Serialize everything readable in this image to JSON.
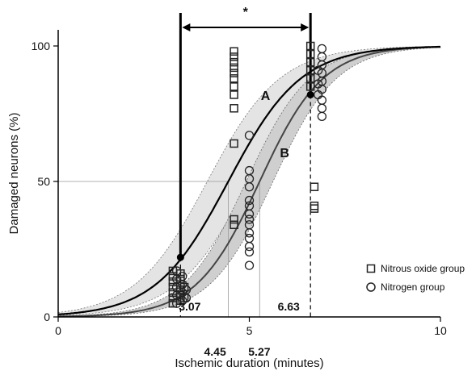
{
  "chart_data": {
    "type": "scatter",
    "xlabel": "Ischemic duration (minutes)",
    "ylabel": "Damaged neurons (%)",
    "xlim": [
      0,
      10
    ],
    "ylim": [
      0,
      100
    ],
    "x_ticks": [
      0,
      5,
      10
    ],
    "y_ticks": [
      0,
      50,
      100
    ],
    "grid": false,
    "legend_position": "bottom-right",
    "significance_marker": "*",
    "curve_labels": [
      "A",
      "B"
    ],
    "annotations": [
      {
        "text": "3.07",
        "x": 3.07
      },
      {
        "text": "6.63",
        "x": 6.63
      },
      {
        "text": "4.45",
        "x": 4.45
      },
      {
        "text": "5.27",
        "x": 5.27
      }
    ],
    "curves": [
      {
        "label": "A",
        "midpoint": 4.45,
        "slope": 1.05,
        "marked_points": [
          [
            3.2,
            22
          ],
          [
            6.6,
            82
          ]
        ]
      },
      {
        "label": "B",
        "midpoint": 5.27,
        "slope": 1.2
      }
    ],
    "series": [
      {
        "name": "Nitrous oxide group",
        "marker": "square",
        "points": [
          [
            3.0,
            5
          ],
          [
            3.0,
            7
          ],
          [
            3.0,
            9
          ],
          [
            3.0,
            11
          ],
          [
            3.0,
            13
          ],
          [
            3.0,
            15
          ],
          [
            3.0,
            17
          ],
          [
            3.2,
            6
          ],
          [
            3.2,
            8
          ],
          [
            3.2,
            10
          ],
          [
            3.2,
            12
          ],
          [
            3.2,
            14
          ],
          [
            3.2,
            16
          ],
          [
            3.3,
            7
          ],
          [
            3.3,
            11
          ],
          [
            4.6,
            64
          ],
          [
            4.6,
            77
          ],
          [
            4.6,
            82
          ],
          [
            4.6,
            85
          ],
          [
            4.6,
            88
          ],
          [
            4.6,
            90
          ],
          [
            4.6,
            92
          ],
          [
            4.6,
            94
          ],
          [
            4.6,
            96
          ],
          [
            4.6,
            98
          ],
          [
            4.6,
            34
          ],
          [
            4.6,
            36
          ],
          [
            6.6,
            85
          ],
          [
            6.6,
            88
          ],
          [
            6.6,
            91
          ],
          [
            6.6,
            94
          ],
          [
            6.6,
            97
          ],
          [
            6.6,
            100
          ],
          [
            6.7,
            48
          ],
          [
            6.7,
            40
          ],
          [
            6.7,
            41
          ]
        ]
      },
      {
        "name": "Nitrogen group",
        "marker": "circle",
        "points": [
          [
            3.1,
            5
          ],
          [
            3.1,
            8
          ],
          [
            3.1,
            11
          ],
          [
            3.1,
            14
          ],
          [
            3.1,
            17
          ],
          [
            3.25,
            6
          ],
          [
            3.25,
            9
          ],
          [
            3.25,
            12
          ],
          [
            3.25,
            15
          ],
          [
            3.35,
            7
          ],
          [
            3.35,
            10
          ],
          [
            5.0,
            67
          ],
          [
            5.0,
            54
          ],
          [
            5.0,
            51
          ],
          [
            5.0,
            48
          ],
          [
            5.0,
            43
          ],
          [
            5.0,
            41
          ],
          [
            5.0,
            38
          ],
          [
            5.0,
            36
          ],
          [
            5.0,
            34
          ],
          [
            5.0,
            31
          ],
          [
            5.0,
            29
          ],
          [
            5.0,
            26
          ],
          [
            5.0,
            24
          ],
          [
            5.0,
            19
          ],
          [
            6.9,
            74
          ],
          [
            6.9,
            77
          ],
          [
            6.9,
            80
          ],
          [
            6.9,
            84
          ],
          [
            6.9,
            87
          ],
          [
            6.9,
            90
          ],
          [
            6.9,
            93
          ],
          [
            6.9,
            96
          ],
          [
            6.9,
            99
          ],
          [
            6.8,
            91
          ],
          [
            6.8,
            86
          ],
          [
            6.8,
            82
          ]
        ]
      }
    ]
  }
}
